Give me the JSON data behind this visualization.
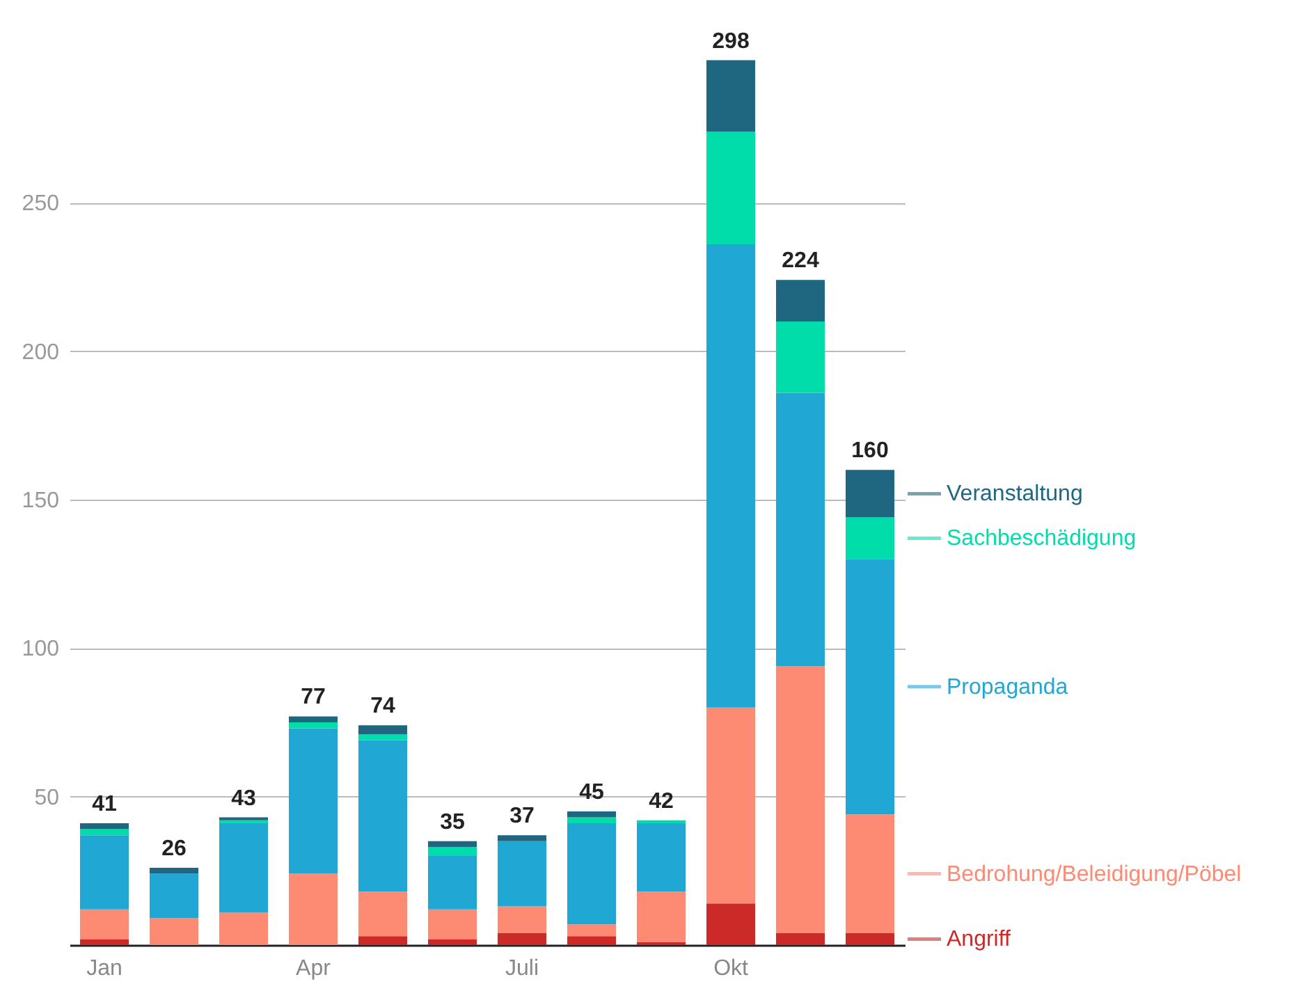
{
  "chart_data": {
    "type": "bar",
    "stacked": true,
    "categories": [
      "Jan",
      null,
      null,
      "Apr",
      null,
      null,
      "Juli",
      null,
      null,
      "Okt",
      null,
      null
    ],
    "series": [
      {
        "name": "Angriff",
        "color": "#cc2929",
        "values": [
          2,
          0,
          0,
          0,
          3,
          2,
          4,
          3,
          1,
          14,
          4,
          4
        ]
      },
      {
        "name": "Bedrohung/Beleidigung/Pöbel",
        "color": "#fd8a72",
        "values": [
          10,
          9,
          11,
          24,
          15,
          10,
          9,
          4,
          17,
          66,
          90,
          40
        ]
      },
      {
        "name": "Propaganda",
        "color": "#21a7d3",
        "values": [
          25,
          15,
          30,
          49,
          51,
          18,
          22,
          34,
          23,
          156,
          92,
          86
        ]
      },
      {
        "name": "Sachbeschädigung",
        "color": "#00ddaa",
        "values": [
          2,
          0,
          1,
          2,
          2,
          3,
          0,
          2,
          1,
          38,
          24,
          14
        ]
      },
      {
        "name": "Veranstaltung",
        "color": "#1f6680",
        "values": [
          2,
          2,
          1,
          2,
          3,
          2,
          2,
          2,
          0,
          24,
          14,
          16
        ]
      }
    ],
    "totals": [
      "41",
      "26",
      "43",
      "77",
      "74",
      "35",
      "37",
      "45",
      "42",
      "298",
      "224",
      "160"
    ],
    "ylim": [
      0,
      300
    ],
    "yticks": [
      50,
      100,
      150,
      200,
      250
    ],
    "grid": "y",
    "legend": "right"
  }
}
